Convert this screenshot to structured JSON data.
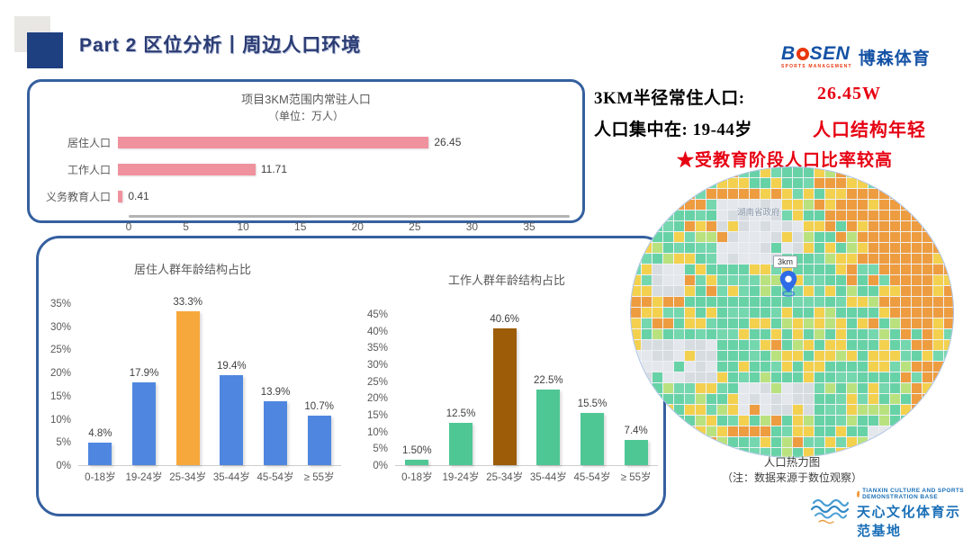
{
  "header": {
    "title": "Part 2 区位分析丨周边人口环境"
  },
  "bosen_logo": {
    "prefix": "B",
    "suffix": "SEN",
    "tagline": "SPORTS MANAGEMENT",
    "cn": "博森体育"
  },
  "stats": {
    "line1_label": "3KM半径常住人口:",
    "line1_value": "26.45W",
    "line2_label": "人口集中在:  19-44岁",
    "line2_value": "人口结构年轻",
    "line3": "★受教育阶段人口比率较高",
    "accent_red": "#e60012"
  },
  "chart_data": [
    {
      "id": "resident_population",
      "type": "bar",
      "orientation": "horizontal",
      "title": "项目3KM范围内常驻人口",
      "subtitle": "（单位：万人）",
      "categories": [
        "居住人口",
        "工作人口",
        "义务教育人口"
      ],
      "values": [
        26.45,
        11.71,
        0.41
      ],
      "value_labels": [
        "26.45",
        "11.71",
        "0.41"
      ],
      "xlim": [
        0,
        35
      ],
      "xticks": [
        0,
        5,
        10,
        15,
        20,
        25,
        30,
        35
      ],
      "bar_color": "#f0919e",
      "grid": false,
      "legend": false
    },
    {
      "id": "resident_age_structure",
      "type": "bar",
      "orientation": "vertical",
      "title": "居住人群年龄结构占比",
      "categories": [
        "0-18岁",
        "19-24岁",
        "25-34岁",
        "35-44岁",
        "45-54岁",
        "≥ 55岁"
      ],
      "values": [
        4.8,
        17.9,
        33.3,
        19.4,
        13.9,
        10.7
      ],
      "value_labels": [
        "4.8%",
        "17.9%",
        "33.3%",
        "19.4%",
        "13.9%",
        "10.7%"
      ],
      "ylim": [
        0,
        35
      ],
      "ytick_step": 5,
      "bar_color": "#4f87e0",
      "highlight_index": 2,
      "highlight_color": "#f7a83c",
      "grid": false,
      "legend": false
    },
    {
      "id": "working_age_structure",
      "type": "bar",
      "orientation": "vertical",
      "title": "工作人群年龄结构占比",
      "categories": [
        "0-18岁",
        "19-24岁",
        "25-34岁",
        "35-44岁",
        "45-54岁",
        "≥ 55岁"
      ],
      "values": [
        1.5,
        12.5,
        40.6,
        22.5,
        15.5,
        7.4
      ],
      "value_labels": [
        "1.50%",
        "12.5%",
        "40.6%",
        "22.5%",
        "15.5%",
        "7.4%"
      ],
      "ylim": [
        0,
        45
      ],
      "ytick_step": 5,
      "bar_color": "#4fc795",
      "highlight_index": 2,
      "highlight_color": "#9c5c08",
      "grid": false,
      "legend": false
    }
  ],
  "heatmap": {
    "caption_line1": "人口热力图",
    "caption_line2": "（注：数据来源于数位观察）",
    "pin_label": "3km",
    "map_label": "湖南省政府",
    "palette": {
      "teal": "#67d2a6",
      "teal2": "#74d7ae",
      "light_green": "#b9e27f",
      "yellow": "#f3d14e",
      "orange": "#ee9c40",
      "gray": "#d7dce1",
      "gray_light": "#e4e8ec",
      "grid_line": "#eef1f4",
      "outline": "#a9c0e4",
      "pin_blue": "#2e6be6"
    }
  },
  "footer_logo": {
    "en": "TIANXIN CULTURE AND SPORTS DEMONSTRATION BASE",
    "cn": "天心文化体育示范基地"
  }
}
